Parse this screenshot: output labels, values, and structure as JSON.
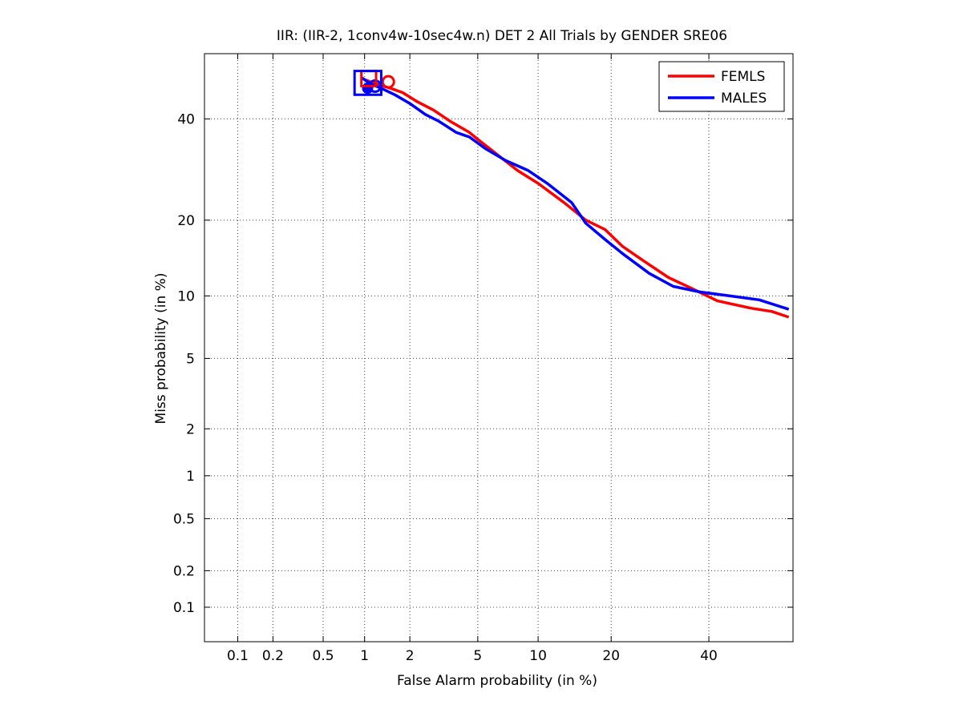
{
  "chart_data": {
    "type": "line",
    "title": "IIR: (IIR-2, 1conv4w-10sec4w.n) DET 2 All Trials by GENDER SRE06",
    "xlabel": "False Alarm probability (in %)",
    "ylabel": "Miss probability (in %)",
    "x_scale": "normal-deviate (probit)",
    "y_scale": "normal-deviate (probit)",
    "xlim": [
      0.05,
      60
    ],
    "ylim": [
      0.05,
      55
    ],
    "x_ticks": [
      0.1,
      0.2,
      0.5,
      1,
      2,
      5,
      10,
      20,
      40
    ],
    "x_tick_labels": [
      "0.1",
      "0.2",
      "0.5",
      "1",
      "2",
      "5",
      "10",
      "20",
      "40"
    ],
    "y_ticks": [
      0.1,
      0.2,
      0.5,
      1,
      2,
      5,
      10,
      20,
      40
    ],
    "y_tick_labels": [
      "0.1",
      "0.2",
      "0.5",
      "1",
      "2",
      "5",
      "10",
      "20",
      "40"
    ],
    "grid": true,
    "legend_position": "top-right",
    "series": [
      {
        "name": "FEMLS",
        "color": "#ff0000",
        "x": [
          1.0,
          1.2,
          1.5,
          1.8,
          2.2,
          2.8,
          3.5,
          4.5,
          5.0,
          6.0,
          8.0,
          10.0,
          13.0,
          16.0,
          19.0,
          22.0,
          26.0,
          31.0,
          36.0,
          42.0,
          50.0,
          55.0,
          59.0
        ],
        "y": [
          49.0,
          48.0,
          47.0,
          46.0,
          44.0,
          42.0,
          39.5,
          37.0,
          35.5,
          33.0,
          29.0,
          26.5,
          23.0,
          20.0,
          18.5,
          16.0,
          14.0,
          12.0,
          10.8,
          9.5,
          8.8,
          8.5,
          8.0
        ]
      },
      {
        "name": "MALES",
        "color": "#0000ff",
        "x": [
          0.95,
          1.1,
          1.3,
          1.6,
          2.0,
          2.5,
          3.0,
          3.8,
          4.5,
          5.5,
          7.0,
          9.0,
          11.0,
          14.0,
          16.0,
          19.0,
          22.0,
          27.0,
          32.0,
          38.0,
          45.0,
          52.0,
          59.0
        ],
        "y": [
          49.5,
          48.0,
          47.0,
          45.5,
          43.5,
          41.0,
          39.5,
          37.0,
          36.0,
          33.5,
          31.0,
          29.0,
          26.5,
          23.0,
          19.5,
          17.0,
          15.0,
          12.5,
          11.0,
          10.4,
          10.0,
          9.6,
          8.7
        ]
      }
    ],
    "markers": [
      {
        "series": "FEMLS",
        "kind": "circle",
        "x": 1.45,
        "y": 48.5
      },
      {
        "series": "MALES",
        "kind": "circle",
        "x": 1.18,
        "y": 47.5
      },
      {
        "series": "MALES",
        "kind": "filled-circle",
        "x": 1.05,
        "y": 47.0
      },
      {
        "series": "FEMLS",
        "kind": "box",
        "x": [
          0.95,
          1.2
        ],
        "y": [
          47.5,
          51
        ]
      },
      {
        "series": "MALES",
        "kind": "box",
        "x": [
          0.85,
          1.3
        ],
        "y": [
          45.5,
          51
        ]
      }
    ]
  }
}
